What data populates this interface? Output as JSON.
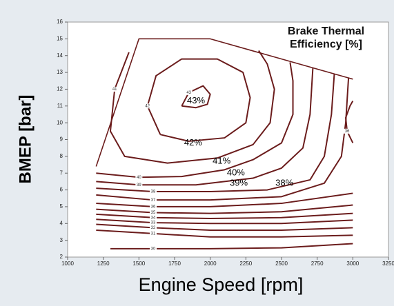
{
  "chart_data": {
    "type": "contour",
    "title": "Brake Thermal Efficiency [%]",
    "xlabel": "Engine Speed [rpm]",
    "ylabel": "BMEP [bar]",
    "xlim": [
      1000,
      3250
    ],
    "xticks": [
      1000,
      1250,
      1500,
      1750,
      2000,
      2250,
      2500,
      2750,
      3000,
      3250
    ],
    "ylim": [
      2,
      16
    ],
    "yticks": [
      2,
      3,
      4,
      5,
      6,
      7,
      8,
      9,
      10,
      11,
      12,
      13,
      14,
      15,
      16
    ],
    "color": "#6b1c1c",
    "envelope": {
      "x": [
        1200,
        1500,
        2000,
        3000
      ],
      "y": [
        7.4,
        15,
        15,
        12.6
      ]
    },
    "contours": [
      {
        "level": 43,
        "x": [
          1800,
          1850,
          1950,
          2000,
          1980,
          1900,
          1800
        ],
        "y": [
          11,
          11.8,
          12.2,
          11.7,
          11.1,
          10.9,
          11
        ]
      },
      {
        "level": 42,
        "x": [
          1650,
          1560,
          1620,
          1800,
          2050,
          2230,
          2280,
          2250,
          2100,
          1850,
          1650
        ],
        "y": [
          9.3,
          11,
          12.8,
          13.8,
          13.8,
          13,
          11.5,
          10,
          9.1,
          8.9,
          9.3
        ]
      },
      {
        "level": 41,
        "x": [
          1430,
          1330,
          1300,
          1400,
          1700,
          2050,
          2300,
          2420,
          2450,
          2400,
          2340
        ],
        "y": [
          14.2,
          12,
          9.5,
          8,
          7.6,
          7.9,
          8.7,
          10,
          12,
          13.5,
          14.3
        ]
      },
      {
        "level": 40,
        "x": [
          1200,
          1500,
          1800,
          2100,
          2300,
          2500,
          2580,
          2580,
          2560
        ],
        "y": [
          7,
          6.75,
          6.8,
          7.2,
          7.8,
          8.8,
          10.5,
          12.5,
          13.6
        ]
      },
      {
        "level": 39,
        "x": [
          1200,
          1500,
          1900,
          2300,
          2500,
          2650,
          2700,
          2720
        ],
        "y": [
          6.5,
          6.3,
          6.3,
          6.7,
          7.3,
          8.5,
          10.5,
          13.3
        ]
      },
      {
        "level": 38,
        "x": [
          1200,
          1600,
          2000,
          2400,
          2700,
          2800,
          2850,
          2870
        ],
        "y": [
          6.1,
          5.9,
          5.9,
          6,
          6.6,
          8,
          10.5,
          12.9
        ]
      },
      {
        "level": 37,
        "x": [
          1200,
          1600,
          2000,
          2500,
          2800,
          2920,
          2950,
          2970
        ],
        "y": [
          5.7,
          5.4,
          5.4,
          5.6,
          6.4,
          8,
          10,
          12.7
        ]
      },
      {
        "level": 36,
        "x": [
          3000,
          2960,
          2950,
          2980,
          3000
        ],
        "y": [
          8.8,
          9.5,
          10.3,
          11,
          11.3
        ]
      },
      {
        "level": 36,
        "x": [
          1200,
          1600,
          2000,
          2500,
          3000
        ],
        "y": [
          5.2,
          5,
          5,
          5.2,
          5.8
        ]
      },
      {
        "level": 35,
        "x": [
          1200,
          1600,
          2000,
          2500,
          3000
        ],
        "y": [
          4.85,
          4.65,
          4.6,
          4.7,
          5.1
        ]
      },
      {
        "level": 34,
        "x": [
          1200,
          1600,
          2000,
          2500,
          3000
        ],
        "y": [
          4.55,
          4.35,
          4.3,
          4.35,
          4.6
        ]
      },
      {
        "level": 33,
        "x": [
          1200,
          1600,
          2000,
          2500,
          3000
        ],
        "y": [
          4.25,
          4.05,
          4,
          4,
          4.2
        ]
      },
      {
        "level": 32,
        "x": [
          1200,
          1600,
          2000,
          2500,
          3000
        ],
        "y": [
          3.95,
          3.75,
          3.6,
          3.6,
          3.75
        ]
      },
      {
        "level": 31,
        "x": [
          1200,
          1600,
          2000,
          2500,
          3000
        ],
        "y": [
          3.6,
          3.4,
          3.2,
          3.2,
          3.3
        ]
      },
      {
        "level": 30,
        "x": [
          1300,
          1600,
          2000,
          2500,
          3000
        ],
        "y": [
          2.5,
          2.5,
          2.5,
          2.55,
          2.8
        ]
      }
    ],
    "annotations": [
      {
        "text": "43%",
        "x": 1900,
        "y": 11.3
      },
      {
        "text": "42%",
        "x": 1880,
        "y": 8.8
      },
      {
        "text": "41%",
        "x": 2080,
        "y": 7.7
      },
      {
        "text": "40%",
        "x": 2180,
        "y": 7.0
      },
      {
        "text": "39%",
        "x": 2200,
        "y": 6.4
      },
      {
        "text": "38%",
        "x": 2520,
        "y": 6.4
      }
    ]
  }
}
